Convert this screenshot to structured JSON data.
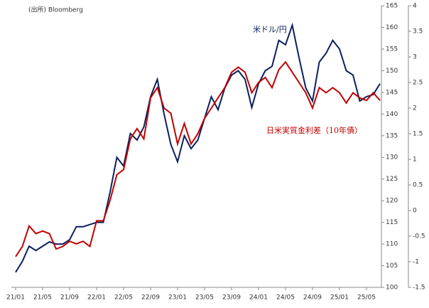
{
  "chart_data": {
    "type": "line",
    "source": "(出所) Bloomberg",
    "categories": [
      "21/01",
      null,
      null,
      null,
      "21/05",
      null,
      null,
      null,
      "21/09",
      null,
      null,
      null,
      "22/01",
      null,
      null,
      null,
      "22/05",
      null,
      null,
      null,
      "22/09",
      null,
      null,
      null,
      "23/01",
      null,
      null,
      null,
      "23/05",
      null,
      null,
      null,
      "23/09",
      null,
      null,
      null,
      "24/01",
      null,
      null,
      null,
      "24/05",
      null,
      null,
      null,
      "24/09",
      null,
      null,
      null,
      "25/01",
      null,
      null,
      null,
      "25/05",
      null,
      null
    ],
    "series": [
      {
        "name": "米ドル/円",
        "color": "#0b1f5e",
        "axis": "y",
        "values": [
          103.5,
          106,
          109.5,
          108.5,
          109.5,
          110.5,
          110,
          110,
          111,
          114,
          114,
          114.5,
          115,
          115,
          122,
          130,
          128,
          135.5,
          134,
          137,
          144,
          148,
          140,
          133,
          129,
          135,
          132,
          134,
          139,
          144,
          141,
          146,
          149,
          150,
          148,
          141.5,
          147,
          150,
          151,
          157,
          156,
          160.5,
          153,
          146,
          143,
          152,
          154,
          157,
          155,
          150,
          149,
          143,
          144,
          144.5,
          147
        ]
      },
      {
        "name": "日米実質金利差（10年債）",
        "color": "#c00000",
        "axis": "y2",
        "values": [
          -0.9,
          -0.7,
          -0.3,
          -0.45,
          -0.4,
          -0.45,
          -0.75,
          -0.7,
          -0.6,
          -0.65,
          -0.6,
          -0.7,
          -0.2,
          -0.2,
          0.2,
          0.7,
          0.8,
          1.4,
          1.6,
          1.4,
          2.2,
          2.4,
          2.0,
          1.9,
          1.3,
          1.7,
          1.3,
          1.5,
          1.8,
          2.0,
          2.2,
          2.4,
          2.7,
          2.8,
          2.7,
          2.3,
          2.5,
          2.6,
          2.4,
          2.75,
          2.9,
          2.7,
          2.5,
          2.3,
          2.0,
          2.4,
          2.3,
          2.4,
          2.3,
          2.1,
          2.3,
          2.2,
          2.15,
          2.3,
          2.15
        ]
      }
    ],
    "ylim": [
      100,
      165
    ],
    "yticks": [
      100,
      105,
      110,
      115,
      120,
      125,
      130,
      135,
      140,
      145,
      150,
      155,
      160,
      165
    ],
    "y2lim": [
      -1.5,
      4
    ],
    "y2ticks": [
      -1.5,
      -1,
      -0.5,
      0,
      0.5,
      1,
      1.5,
      2,
      2.5,
      3,
      3.5,
      4
    ],
    "grid": false
  }
}
